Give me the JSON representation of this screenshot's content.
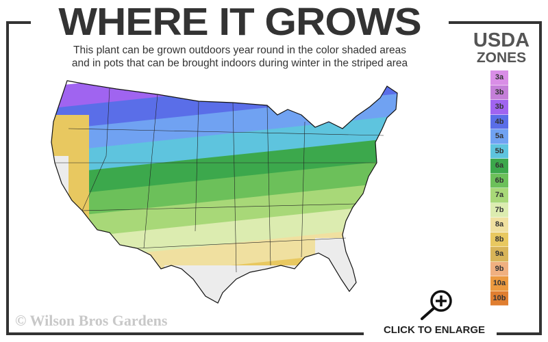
{
  "header": {
    "title": "WHERE IT GROWS",
    "subtitle_line1": "This plant can be grown outdoors year round in the color shaded areas",
    "subtitle_line2": "and in pots that can be brought indoors during winter in the striped area"
  },
  "legend": {
    "title_line1": "USDA",
    "title_line2": "ZONES",
    "zones": [
      {
        "label": "3a",
        "color": "#d98ee6"
      },
      {
        "label": "3b",
        "color": "#c47fd8"
      },
      {
        "label": "3b",
        "color": "#a064f0"
      },
      {
        "label": "4b",
        "color": "#5a6ee8"
      },
      {
        "label": "5a",
        "color": "#70a2f2"
      },
      {
        "label": "5b",
        "color": "#5ec4de"
      },
      {
        "label": "6a",
        "color": "#3ca84c"
      },
      {
        "label": "6b",
        "color": "#6cc05a"
      },
      {
        "label": "7a",
        "color": "#a8d878"
      },
      {
        "label": "7b",
        "color": "#dcecb0"
      },
      {
        "label": "8a",
        "color": "#f0e0a0"
      },
      {
        "label": "8b",
        "color": "#e8c860"
      },
      {
        "label": "9a",
        "color": "#d8b458"
      },
      {
        "label": "9b",
        "color": "#f0b080"
      },
      {
        "label": "10a",
        "color": "#ec9a40"
      },
      {
        "label": "10b",
        "color": "#e07e30"
      }
    ]
  },
  "copyright": "© Wilson Bros Gardens",
  "enlarge": {
    "label": "CLICK TO ENLARGE",
    "icon": "zoom-in-magnifier-icon"
  }
}
